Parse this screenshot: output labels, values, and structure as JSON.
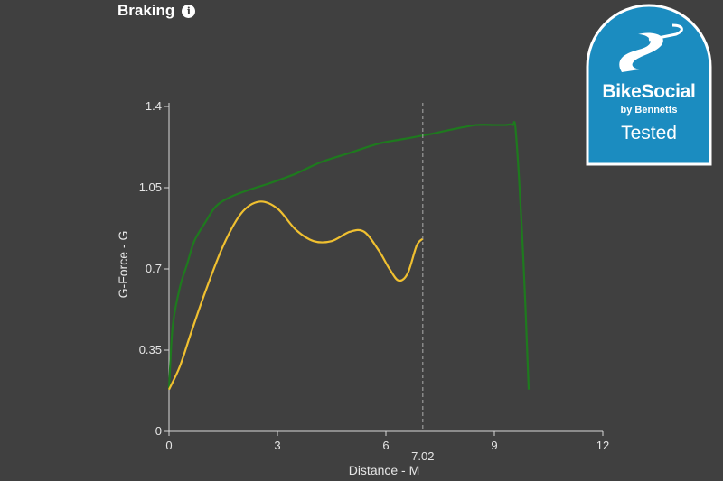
{
  "header": {
    "title": "Braking"
  },
  "badge": {
    "brand": "BikeSocial",
    "subtitle": "by Bennetts",
    "label": "Tested",
    "color": "#1b8cc0"
  },
  "chart_data": {
    "type": "line",
    "title": "Braking",
    "xlabel": "Distance - M",
    "ylabel": "G-Force - G",
    "xlim": [
      0,
      12
    ],
    "ylim": [
      0,
      1.4
    ],
    "xticks": [
      0,
      3,
      6,
      9,
      12
    ],
    "yticks": [
      0,
      0.35,
      0.7,
      1.05,
      1.4
    ],
    "marker": {
      "x": 7.02,
      "label": "7.02"
    },
    "grid": false,
    "legend": "none",
    "series": [
      {
        "color": "#1e7a1e",
        "x": [
          0,
          0.1,
          0.3,
          0.5,
          0.7,
          1.0,
          1.3,
          1.7,
          2.2,
          2.8,
          3.5,
          4.2,
          5.0,
          5.8,
          6.5,
          7.2,
          7.8,
          8.5,
          9.0,
          9.3,
          9.5,
          9.6,
          9.8,
          9.95
        ],
        "y": [
          0.18,
          0.45,
          0.62,
          0.72,
          0.82,
          0.9,
          0.97,
          1.01,
          1.04,
          1.07,
          1.11,
          1.16,
          1.2,
          1.24,
          1.26,
          1.28,
          1.3,
          1.32,
          1.32,
          1.32,
          1.32,
          1.28,
          0.75,
          0.18
        ]
      },
      {
        "color": "#f0c030",
        "x": [
          0,
          0.3,
          0.6,
          1.0,
          1.5,
          2.0,
          2.5,
          3.0,
          3.5,
          4.0,
          4.5,
          5.0,
          5.4,
          5.8,
          6.1,
          6.35,
          6.6,
          6.85,
          7.02
        ],
        "y": [
          0.18,
          0.28,
          0.42,
          0.6,
          0.8,
          0.94,
          0.99,
          0.96,
          0.87,
          0.82,
          0.82,
          0.86,
          0.86,
          0.78,
          0.7,
          0.65,
          0.68,
          0.8,
          0.83
        ]
      }
    ]
  }
}
